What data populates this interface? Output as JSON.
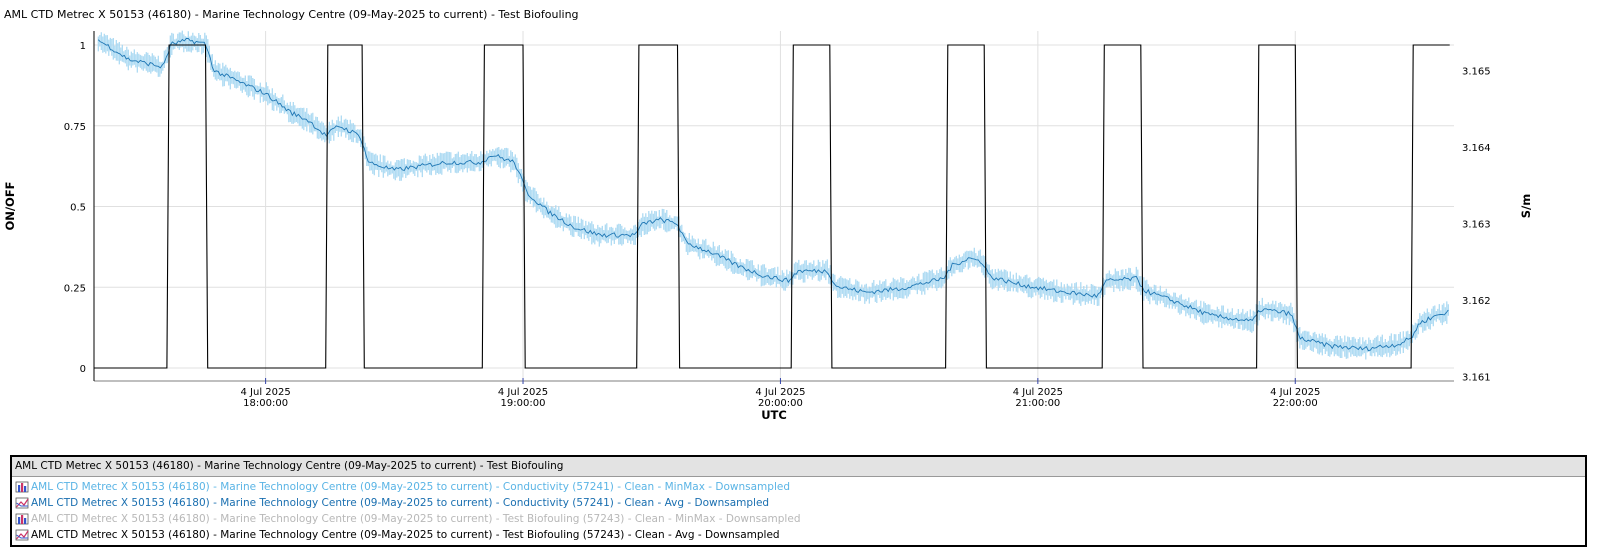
{
  "title": "AML CTD Metrec X 50153 (46180) - Marine Technology Centre (09-May-2025 to current) - Test Biofouling",
  "colors": {
    "minmax_fill": "#a8d8f2",
    "avg_line": "#1f77b4",
    "onoff_line": "#000000",
    "legend_conductivity_minmax": "#5ab4e5",
    "legend_conductivity_avg": "#1a6fb0",
    "legend_biofouling_minmax": "#b8b8b8",
    "legend_biofouling_avg": "#000000",
    "grid": "#e0e0e0"
  },
  "chart_data": {
    "type": "line",
    "title": "AML CTD Metrec X 50153 (46180) - Marine Technology Centre (09-May-2025 to current) - Test Biofouling",
    "xlabel": "UTC",
    "ylabel_left": "ON/OFF",
    "ylabel_right": "S/m",
    "grid": true,
    "x_range": [
      "2025-07-04 17:20:00",
      "2025-07-04 22:37:00"
    ],
    "x_ticks": [
      {
        "date": "4 Jul 2025",
        "time": "18:00:00",
        "x": "2025-07-04 18:00:00"
      },
      {
        "date": "4 Jul 2025",
        "time": "19:00:00",
        "x": "2025-07-04 19:00:00"
      },
      {
        "date": "4 Jul 2025",
        "time": "20:00:00",
        "x": "2025-07-04 20:00:00"
      },
      {
        "date": "4 Jul 2025",
        "time": "21:00:00",
        "x": "2025-07-04 21:00:00"
      },
      {
        "date": "4 Jul 2025",
        "time": "22:00:00",
        "x": "2025-07-04 22:00:00"
      }
    ],
    "y_left_range": [
      0,
      1
    ],
    "y_left_ticks": [
      "0",
      "0.25",
      "0.5",
      "0.75",
      "1"
    ],
    "y_right_range": [
      3.16094,
      3.16552
    ],
    "y_right_ticks": [
      "3.161",
      "3.162",
      "3.163",
      "3.164",
      "3.165"
    ],
    "series": [
      {
        "name": "AML CTD Metrec X 50153 (46180) - Marine Technology Centre (09-May-2025 to current) - Test Biofouling (57243) - Clean - Avg - Downsampled",
        "axis": "left",
        "step": true,
        "points": [
          [
            "2025-07-04 17:20:00",
            0
          ],
          [
            "2025-07-04 17:37:00",
            0
          ],
          [
            "2025-07-04 17:37:30",
            1
          ],
          [
            "2025-07-04 17:46:00",
            1
          ],
          [
            "2025-07-04 17:46:30",
            0
          ],
          [
            "2025-07-04 18:14:00",
            0
          ],
          [
            "2025-07-04 18:14:30",
            1
          ],
          [
            "2025-07-04 18:22:30",
            1
          ],
          [
            "2025-07-04 18:23:00",
            0
          ],
          [
            "2025-07-04 18:50:30",
            0
          ],
          [
            "2025-07-04 18:51:00",
            1
          ],
          [
            "2025-07-04 19:00:00",
            1
          ],
          [
            "2025-07-04 19:00:30",
            0
          ],
          [
            "2025-07-04 19:26:30",
            0
          ],
          [
            "2025-07-04 19:27:00",
            1
          ],
          [
            "2025-07-04 19:36:00",
            1
          ],
          [
            "2025-07-04 19:36:30",
            0
          ],
          [
            "2025-07-04 20:02:30",
            0
          ],
          [
            "2025-07-04 20:03:00",
            1
          ],
          [
            "2025-07-04 20:11:30",
            1
          ],
          [
            "2025-07-04 20:12:00",
            0
          ],
          [
            "2025-07-04 20:38:30",
            0
          ],
          [
            "2025-07-04 20:39:00",
            1
          ],
          [
            "2025-07-04 20:47:30",
            1
          ],
          [
            "2025-07-04 20:48:00",
            0
          ],
          [
            "2025-07-04 21:15:00",
            0
          ],
          [
            "2025-07-04 21:15:30",
            1
          ],
          [
            "2025-07-04 21:24:00",
            1
          ],
          [
            "2025-07-04 21:24:30",
            0
          ],
          [
            "2025-07-04 21:51:00",
            0
          ],
          [
            "2025-07-04 21:51:30",
            1
          ],
          [
            "2025-07-04 22:00:00",
            1
          ],
          [
            "2025-07-04 22:00:30",
            0
          ],
          [
            "2025-07-04 22:27:00",
            0
          ],
          [
            "2025-07-04 22:27:30",
            1
          ],
          [
            "2025-07-04 22:36:00",
            1
          ]
        ]
      },
      {
        "name": "AML CTD Metrec X 50153 (46180) - Marine Technology Centre (09-May-2025 to current) - Conductivity (57241) - Clean - Avg - Downsampled",
        "axis": "right",
        "points": [
          [
            "2025-07-04 17:21:00",
            3.1654
          ],
          [
            "2025-07-04 17:24:00",
            3.1653
          ],
          [
            "2025-07-04 17:28:00",
            3.16515
          ],
          [
            "2025-07-04 17:32:00",
            3.1651
          ],
          [
            "2025-07-04 17:36:00",
            3.16505
          ],
          [
            "2025-07-04 17:38:00",
            3.16535
          ],
          [
            "2025-07-04 17:42:00",
            3.1654
          ],
          [
            "2025-07-04 17:46:00",
            3.16535
          ],
          [
            "2025-07-04 17:48:00",
            3.165
          ],
          [
            "2025-07-04 17:54:00",
            3.16485
          ],
          [
            "2025-07-04 18:00:00",
            3.1647
          ],
          [
            "2025-07-04 18:06:00",
            3.16445
          ],
          [
            "2025-07-04 18:10:00",
            3.16435
          ],
          [
            "2025-07-04 18:14:00",
            3.16415
          ],
          [
            "2025-07-04 18:17:00",
            3.16428
          ],
          [
            "2025-07-04 18:22:00",
            3.16415
          ],
          [
            "2025-07-04 18:24:00",
            3.1638
          ],
          [
            "2025-07-04 18:30:00",
            3.1637
          ],
          [
            "2025-07-04 18:36:00",
            3.16375
          ],
          [
            "2025-07-04 18:42:00",
            3.1638
          ],
          [
            "2025-07-04 18:50:00",
            3.1638
          ],
          [
            "2025-07-04 18:53:00",
            3.1639
          ],
          [
            "2025-07-04 18:58:00",
            3.1638
          ],
          [
            "2025-07-04 19:01:00",
            3.1634
          ],
          [
            "2025-07-04 19:06:00",
            3.16315
          ],
          [
            "2025-07-04 19:12:00",
            3.16295
          ],
          [
            "2025-07-04 19:18:00",
            3.16285
          ],
          [
            "2025-07-04 19:26:00",
            3.16285
          ],
          [
            "2025-07-04 19:28:00",
            3.163
          ],
          [
            "2025-07-04 19:32:00",
            3.16305
          ],
          [
            "2025-07-04 19:36:00",
            3.163
          ],
          [
            "2025-07-04 19:38:00",
            3.16275
          ],
          [
            "2025-07-04 19:44:00",
            3.16262
          ],
          [
            "2025-07-04 19:50:00",
            3.16245
          ],
          [
            "2025-07-04 19:56:00",
            3.16232
          ],
          [
            "2025-07-04 20:02:00",
            3.16225
          ],
          [
            "2025-07-04 20:04:00",
            3.16238
          ],
          [
            "2025-07-04 20:11:00",
            3.16238
          ],
          [
            "2025-07-04 20:13:00",
            3.16218
          ],
          [
            "2025-07-04 20:20:00",
            3.1621
          ],
          [
            "2025-07-04 20:28:00",
            3.16215
          ],
          [
            "2025-07-04 20:38:00",
            3.16228
          ],
          [
            "2025-07-04 20:40:00",
            3.16245
          ],
          [
            "2025-07-04 20:44:00",
            3.16255
          ],
          [
            "2025-07-04 20:47:00",
            3.1625
          ],
          [
            "2025-07-04 20:49:00",
            3.1623
          ],
          [
            "2025-07-04 20:56:00",
            3.1622
          ],
          [
            "2025-07-04 21:04:00",
            3.16212
          ],
          [
            "2025-07-04 21:14:00",
            3.16205
          ],
          [
            "2025-07-04 21:16:00",
            3.16225
          ],
          [
            "2025-07-04 21:23:00",
            3.16228
          ],
          [
            "2025-07-04 21:25:00",
            3.16212
          ],
          [
            "2025-07-04 21:32:00",
            3.16198
          ],
          [
            "2025-07-04 21:40:00",
            3.1618
          ],
          [
            "2025-07-04 21:50:00",
            3.16172
          ],
          [
            "2025-07-04 21:52:00",
            3.16188
          ],
          [
            "2025-07-04 21:59:00",
            3.16182
          ],
          [
            "2025-07-04 22:01:00",
            3.1615
          ],
          [
            "2025-07-04 22:08:00",
            3.1614
          ],
          [
            "2025-07-04 22:16:00",
            3.16136
          ],
          [
            "2025-07-04 22:24:00",
            3.16142
          ],
          [
            "2025-07-04 22:27:00",
            3.1615
          ],
          [
            "2025-07-04 22:29:00",
            3.1617
          ],
          [
            "2025-07-04 22:33:00",
            3.1618
          ],
          [
            "2025-07-04 22:36:00",
            3.16185
          ]
        ]
      },
      {
        "name": "AML CTD Metrec X 50153 (46180) - Marine Technology Centre (09-May-2025 to current) - Conductivity (57241) - Clean - MinMax - Downsampled",
        "axis": "right",
        "band": true,
        "band_half_width": 0.00012
      }
    ]
  },
  "legend": {
    "header": "AML CTD Metrec X 50153 (46180) - Marine Technology Centre (09-May-2025 to current) - Test Biofouling",
    "items": [
      {
        "label": "AML CTD Metrec X 50153 (46180) - Marine Technology Centre (09-May-2025 to current) - Conductivity (57241) - Clean - MinMax - Downsampled",
        "icon": "minmax-icon",
        "color": "#5ab4e5"
      },
      {
        "label": "AML CTD Metrec X 50153 (46180) - Marine Technology Centre (09-May-2025 to current) - Conductivity (57241) - Clean - Avg - Downsampled",
        "icon": "line-icon",
        "color": "#1a6fb0"
      },
      {
        "label": "AML CTD Metrec X 50153 (46180) - Marine Technology Centre (09-May-2025 to current) - Test Biofouling (57243) - Clean - MinMax - Downsampled",
        "icon": "minmax-icon",
        "color": "#b8b8b8"
      },
      {
        "label": "AML CTD Metrec X 50153 (46180) - Marine Technology Centre (09-May-2025 to current) - Test Biofouling (57243) - Clean - Avg - Downsampled",
        "icon": "line-icon",
        "color": "#000000"
      }
    ]
  }
}
